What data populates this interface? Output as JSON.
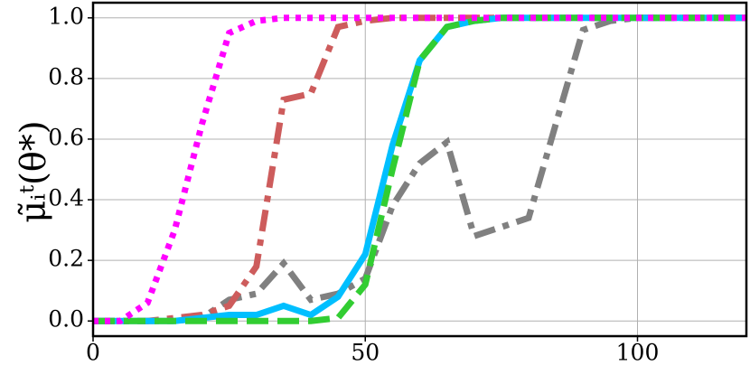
{
  "chart_data": {
    "type": "line",
    "y_label": "μ̃ᵢᵗ(θ*)",
    "x": [
      0,
      5,
      10,
      15,
      20,
      25,
      30,
      35,
      40,
      45,
      50,
      55,
      60,
      65,
      70,
      75,
      80,
      85,
      90,
      95,
      100,
      105,
      110,
      115,
      120
    ],
    "series": [
      {
        "color": "#808080",
        "dash": "dashdot",
        "values": [
          0,
          0,
          0,
          0,
          0.01,
          0.07,
          0.09,
          0.19,
          0.07,
          0.09,
          0.14,
          0.38,
          0.52,
          0.59,
          0.28,
          0.31,
          0.34,
          0.65,
          0.96,
          0.99,
          1,
          1,
          1,
          1,
          1
        ]
      },
      {
        "color": "#cd5c5c",
        "dash": "dashdot",
        "values": [
          0,
          0,
          0,
          0.01,
          0.02,
          0.05,
          0.18,
          0.73,
          0.75,
          0.97,
          0.99,
          1,
          1,
          1,
          1,
          1,
          1,
          1,
          1,
          1,
          1,
          1,
          1,
          1,
          1
        ]
      },
      {
        "color": "#00bfff",
        "dash": "solid",
        "values": [
          0,
          0,
          0,
          0,
          0.01,
          0.02,
          0.02,
          0.05,
          0.02,
          0.08,
          0.22,
          0.58,
          0.86,
          0.97,
          0.99,
          1,
          1,
          1,
          1,
          1,
          1,
          1,
          1,
          1,
          1
        ]
      },
      {
        "color": "#32cd32",
        "dash": "dashed",
        "values": [
          0,
          0,
          0,
          0,
          0,
          0,
          0,
          0,
          0,
          0.01,
          0.12,
          0.5,
          0.86,
          0.97,
          0.99,
          1,
          1,
          1,
          1,
          1,
          1,
          1,
          1,
          1,
          1
        ]
      },
      {
        "color": "#ff00ff",
        "dash": "dotted",
        "values": [
          0,
          0,
          0.06,
          0.3,
          0.65,
          0.95,
          0.99,
          1,
          1,
          1,
          1,
          1,
          1,
          1,
          1,
          1,
          1,
          1,
          1,
          1,
          1,
          1,
          1,
          1,
          1
        ]
      }
    ],
    "xlim": [
      0,
      120
    ],
    "xticks": [
      0,
      50,
      100
    ],
    "ylim": [
      -0.05,
      1.05
    ],
    "yticks": [
      {
        "value": 0,
        "label": "0.0"
      },
      0.2,
      0.4,
      0.6,
      0.8,
      {
        "value": 1,
        "label": "1.0"
      }
    ],
    "grid": true
  }
}
